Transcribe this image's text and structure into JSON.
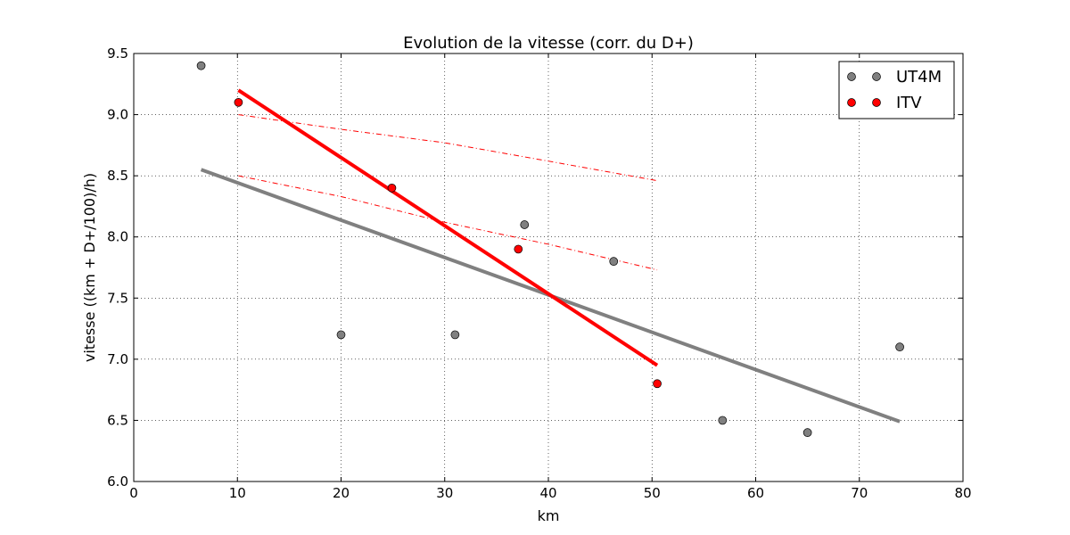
{
  "chart_data": {
    "type": "scatter",
    "title": "Evolution de la vitesse (corr. du D+)",
    "xlabel": "km",
    "ylabel": "vitesse ((km + D+/100)/h)",
    "xlim": [
      0,
      80
    ],
    "ylim": [
      6.0,
      9.5
    ],
    "x_ticks": [
      0,
      10,
      20,
      30,
      40,
      50,
      60,
      70,
      80
    ],
    "y_ticks": [
      6.0,
      6.5,
      7.0,
      7.5,
      8.0,
      8.5,
      9.0,
      9.5
    ],
    "x_tick_labels": [
      "0",
      "10",
      "20",
      "30",
      "40",
      "50",
      "60",
      "70",
      "80"
    ],
    "y_tick_labels": [
      "6.0",
      "6.5",
      "7.0",
      "7.5",
      "8.0",
      "8.5",
      "9.0",
      "9.5"
    ],
    "grid": true,
    "legend_position": "top-right",
    "series": [
      {
        "name": "UT4M",
        "color": "#808080",
        "points": [
          {
            "x": 6.5,
            "y": 9.4
          },
          {
            "x": 20.0,
            "y": 7.2
          },
          {
            "x": 31.0,
            "y": 7.2
          },
          {
            "x": 37.7,
            "y": 8.1
          },
          {
            "x": 46.3,
            "y": 7.8
          },
          {
            "x": 56.8,
            "y": 6.5
          },
          {
            "x": 65.0,
            "y": 6.4
          },
          {
            "x": 73.9,
            "y": 7.1
          }
        ],
        "trend": {
          "x": [
            6.5,
            73.9
          ],
          "y": [
            8.55,
            6.49
          ]
        }
      },
      {
        "name": "ITV",
        "color": "#ff0000",
        "points": [
          {
            "x": 10.1,
            "y": 9.1
          },
          {
            "x": 24.9,
            "y": 8.4
          },
          {
            "x": 37.1,
            "y": 7.9
          },
          {
            "x": 50.5,
            "y": 6.8
          }
        ],
        "trend": {
          "x": [
            10.1,
            50.5
          ],
          "y": [
            9.2,
            6.95
          ]
        },
        "bounds": [
          {
            "x": [
              10.1,
              20,
              30,
              40,
              50.5
            ],
            "y": [
              9.0,
              8.88,
              8.77,
              8.62,
              8.46
            ]
          },
          {
            "x": [
              10.1,
              20,
              30,
              40,
              50.5
            ],
            "y": [
              8.5,
              8.33,
              8.12,
              7.94,
              7.73
            ]
          }
        ]
      }
    ]
  }
}
